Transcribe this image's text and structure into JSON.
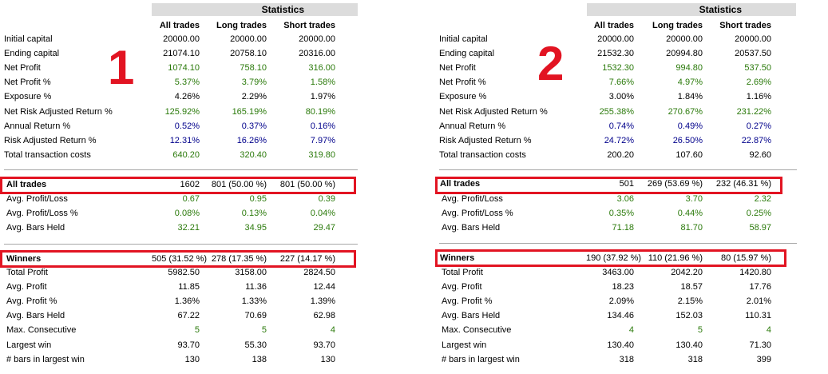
{
  "header": {
    "title": "Statistics",
    "col_all": "All trades",
    "col_long": "Long trades",
    "col_short": "Short trades"
  },
  "panels": [
    {
      "marker": "1",
      "stats": [
        {
          "label": "Initial capital",
          "all": "20000.00",
          "long": "20000.00",
          "short": "20000.00",
          "color": "black"
        },
        {
          "label": "Ending capital",
          "all": "21074.10",
          "long": "20758.10",
          "short": "20316.00",
          "color": "black"
        },
        {
          "label": "Net Profit",
          "all": "1074.10",
          "long": "758.10",
          "short": "316.00",
          "color": "green"
        },
        {
          "label": "Net Profit %",
          "all": "5.37%",
          "long": "3.79%",
          "short": "1.58%",
          "color": "green"
        },
        {
          "label": "Exposure %",
          "all": "4.26%",
          "long": "2.29%",
          "short": "1.97%",
          "color": "black"
        },
        {
          "label": "Net Risk Adjusted Return %",
          "all": "125.92%",
          "long": "165.19%",
          "short": "80.19%",
          "color": "green"
        },
        {
          "label": "Annual Return %",
          "all": "0.52%",
          "long": "0.37%",
          "short": "0.16%",
          "color": "blue"
        },
        {
          "label": "Risk Adjusted Return %",
          "all": "12.31%",
          "long": "16.26%",
          "short": "7.97%",
          "color": "blue"
        },
        {
          "label": "Total transaction costs",
          "all": "640.20",
          "long": "320.40",
          "short": "319.80",
          "color": "green"
        }
      ],
      "all_trades": {
        "label": "All trades",
        "all": "1602",
        "long": "801 (50.00 %)",
        "short": "801 (50.00 %)"
      },
      "all_trades_rows": [
        {
          "label": "Avg. Profit/Loss",
          "all": "0.67",
          "long": "0.95",
          "short": "0.39",
          "color": "green"
        },
        {
          "label": "Avg. Profit/Loss %",
          "all": "0.08%",
          "long": "0.13%",
          "short": "0.04%",
          "color": "green"
        },
        {
          "label": "Avg. Bars Held",
          "all": "32.21",
          "long": "34.95",
          "short": "29.47",
          "color": "green"
        }
      ],
      "winners": {
        "label": "Winners",
        "all": "505 (31.52 %)",
        "long": "278 (17.35 %)",
        "short": "227 (14.17 %)"
      },
      "winners_rows": [
        {
          "label": "Total Profit",
          "all": "5982.50",
          "long": "3158.00",
          "short": "2824.50",
          "color": "black"
        },
        {
          "label": "Avg. Profit",
          "all": "11.85",
          "long": "11.36",
          "short": "12.44",
          "color": "black"
        },
        {
          "label": "Avg. Profit %",
          "all": "1.36%",
          "long": "1.33%",
          "short": "1.39%",
          "color": "black"
        },
        {
          "label": "Avg. Bars Held",
          "all": "67.22",
          "long": "70.69",
          "short": "62.98",
          "color": "black"
        },
        {
          "label": "Max. Consecutive",
          "all": "5",
          "long": "5",
          "short": "4",
          "color": "green"
        },
        {
          "label": "Largest win",
          "all": "93.70",
          "long": "55.30",
          "short": "93.70",
          "color": "black"
        },
        {
          "label": "# bars in largest win",
          "all": "130",
          "long": "138",
          "short": "130",
          "color": "black"
        }
      ]
    },
    {
      "marker": "2",
      "stats": [
        {
          "label": "Initial capital",
          "all": "20000.00",
          "long": "20000.00",
          "short": "20000.00",
          "color": "black"
        },
        {
          "label": "Ending capital",
          "all": "21532.30",
          "long": "20994.80",
          "short": "20537.50",
          "color": "black"
        },
        {
          "label": "Net Profit",
          "all": "1532.30",
          "long": "994.80",
          "short": "537.50",
          "color": "green"
        },
        {
          "label": "Net Profit %",
          "all": "7.66%",
          "long": "4.97%",
          "short": "2.69%",
          "color": "green"
        },
        {
          "label": "Exposure %",
          "all": "3.00%",
          "long": "1.84%",
          "short": "1.16%",
          "color": "black"
        },
        {
          "label": "Net Risk Adjusted Return %",
          "all": "255.38%",
          "long": "270.67%",
          "short": "231.22%",
          "color": "green"
        },
        {
          "label": "Annual Return %",
          "all": "0.74%",
          "long": "0.49%",
          "short": "0.27%",
          "color": "blue"
        },
        {
          "label": "Risk Adjusted Return %",
          "all": "24.72%",
          "long": "26.50%",
          "short": "22.87%",
          "color": "blue"
        },
        {
          "label": "Total transaction costs",
          "all": "200.20",
          "long": "107.60",
          "short": "92.60",
          "color": "black"
        }
      ],
      "all_trades": {
        "label": "All trades",
        "all": "501",
        "long": "269 (53.69 %)",
        "short": "232 (46.31 %)"
      },
      "all_trades_rows": [
        {
          "label": "Avg. Profit/Loss",
          "all": "3.06",
          "long": "3.70",
          "short": "2.32",
          "color": "green"
        },
        {
          "label": "Avg. Profit/Loss %",
          "all": "0.35%",
          "long": "0.44%",
          "short": "0.25%",
          "color": "green"
        },
        {
          "label": "Avg. Bars Held",
          "all": "71.18",
          "long": "81.70",
          "short": "58.97",
          "color": "green"
        }
      ],
      "winners": {
        "label": "Winners",
        "all": "190 (37.92 %)",
        "long": "110 (21.96 %)",
        "short": "80 (15.97 %)"
      },
      "winners_rows": [
        {
          "label": "Total Profit",
          "all": "3463.00",
          "long": "2042.20",
          "short": "1420.80",
          "color": "black"
        },
        {
          "label": "Avg. Profit",
          "all": "18.23",
          "long": "18.57",
          "short": "17.76",
          "color": "black"
        },
        {
          "label": "Avg. Profit %",
          "all": "2.09%",
          "long": "2.15%",
          "short": "2.01%",
          "color": "black"
        },
        {
          "label": "Avg. Bars Held",
          "all": "134.46",
          "long": "152.03",
          "short": "110.31",
          "color": "black"
        },
        {
          "label": "Max. Consecutive",
          "all": "4",
          "long": "5",
          "short": "4",
          "color": "green"
        },
        {
          "label": "Largest win",
          "all": "130.40",
          "long": "130.40",
          "short": "71.30",
          "color": "black"
        },
        {
          "label": "# bars in largest win",
          "all": "318",
          "long": "318",
          "short": "399",
          "color": "black"
        }
      ]
    }
  ],
  "colors": {
    "green": "#2b7a0b",
    "blue": "#00008b",
    "highlight": "#e21422",
    "header_bg": "#dcdcdc"
  }
}
